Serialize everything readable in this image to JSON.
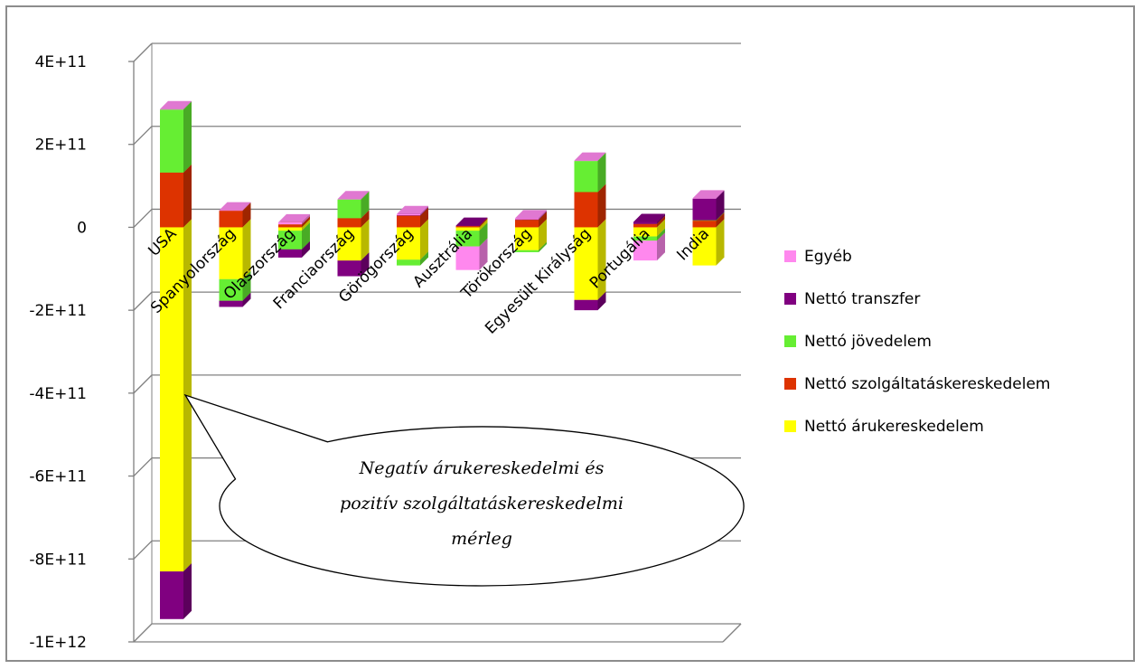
{
  "chart_data": {
    "type": "bar",
    "stacked": true,
    "three_d": true,
    "title": "",
    "xlabel": "",
    "ylabel": "",
    "ylim": [
      -1000000000000,
      400000000000
    ],
    "y_tick_values": [
      400000000000,
      200000000000,
      0,
      -200000000000,
      -400000000000,
      -600000000000,
      -800000000000,
      -1000000000000
    ],
    "y_tick_labels": [
      "4E+11",
      "2E+11",
      "0",
      "-2E+11",
      "-4E+11",
      "-6E+11",
      "-8E+11",
      "-1E+12"
    ],
    "grid": true,
    "legend_position": "right",
    "categories": [
      "USA",
      "Spanyolország",
      "Olaszország",
      "Franciaország",
      "Görögország",
      "Ausztrália",
      "Törökország",
      "Egyesült Királyság",
      "Portugália",
      "India"
    ],
    "series": [
      {
        "name": "Nettó árukereskedelem",
        "color": "#ffff00",
        "values": [
          -830000000000,
          -125000000000,
          -8000000000,
          -80000000000,
          -78000000000,
          -8000000000,
          -55000000000,
          -175000000000,
          -22000000000,
          -92000000000
        ]
      },
      {
        "name": "Nettó szolgáltatáskereskedelem",
        "color": "#dd3300",
        "values": [
          132000000000,
          40000000000,
          7000000000,
          22000000000,
          28000000000,
          3000000000,
          18000000000,
          85000000000,
          8000000000,
          16000000000
        ]
      },
      {
        "name": "Nettó jövedelem",
        "color": "#66ee33",
        "values": [
          152000000000,
          -52000000000,
          -45000000000,
          45000000000,
          -14000000000,
          -38000000000,
          -5000000000,
          75000000000,
          -10000000000,
          1000000000
        ]
      },
      {
        "name": "Nettó transzfer",
        "color": "#800080",
        "values": [
          -115000000000,
          -15000000000,
          -20000000000,
          -38000000000,
          1000000000,
          1000000000,
          1000000000,
          -25000000000,
          5000000000,
          52000000000
        ]
      },
      {
        "name": "Egyéb",
        "color": "#ff88ee",
        "values": [
          1000000000,
          1000000000,
          5000000000,
          1000000000,
          3000000000,
          -57000000000,
          3000000000,
          1000000000,
          -48000000000,
          1000000000
        ]
      }
    ],
    "annotation": {
      "lines": [
        "Negatív árukereskedelmi és",
        "pozitív szolgáltatáskereskedelmi",
        "mérleg"
      ]
    }
  }
}
